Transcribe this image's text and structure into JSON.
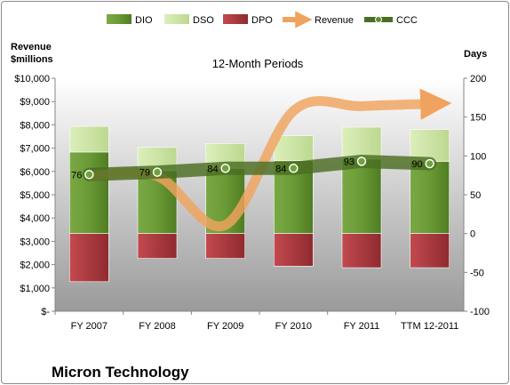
{
  "chart_data": {
    "type": "bar",
    "title": "12-Month Periods",
    "company": "Micron Technology",
    "left_axis_title_1": "Revenue",
    "left_axis_title_2": "$millions",
    "right_axis_title": "Days",
    "categories": [
      "FY 2007",
      "FY 2008",
      "FY 2009",
      "FY 2010",
      "FY 2011",
      "TTM 12-2011"
    ],
    "left_ticks": [
      "$10,000",
      "$9,000",
      "$8,000",
      "$7,000",
      "$6,000",
      "$5,000",
      "$4,000",
      "$3,000",
      "$2,000",
      "$1,000",
      "$-"
    ],
    "right_ticks": [
      "200",
      "150",
      "100",
      "50",
      "0",
      "-50",
      "-100"
    ],
    "ylim_days": [
      -100,
      200
    ],
    "ylim_revenue": [
      0,
      10000
    ],
    "grid": false,
    "legend_position": "top",
    "series": [
      {
        "name": "DIO",
        "values": [
          105,
          81,
          84,
          94,
          96,
          93
        ],
        "color": "#5f8f2b"
      },
      {
        "name": "DSO",
        "values": [
          33,
          30,
          32,
          32,
          41,
          41
        ],
        "color": "#cfe7a3"
      },
      {
        "name": "DPO",
        "values": [
          62,
          32,
          32,
          42,
          44,
          44
        ],
        "color": "#b0343a"
      },
      {
        "name": "Revenue",
        "values": [
          5800,
          5800,
          3700,
          8600,
          8800,
          8900
        ],
        "color": "#f0a35e"
      },
      {
        "name": "CCC",
        "values": [
          76,
          79,
          84,
          84,
          93,
          90
        ],
        "color": "#4b6e22"
      }
    ],
    "ccc_labels": [
      "76",
      "79",
      "84",
      "84",
      "93",
      "90"
    ]
  }
}
